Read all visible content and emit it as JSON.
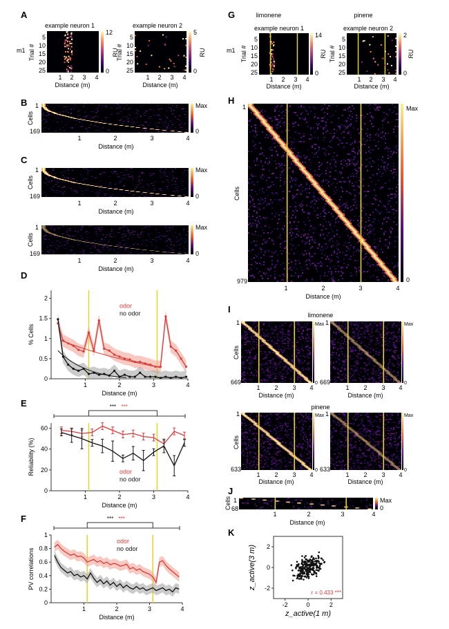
{
  "panels": {
    "A": "A",
    "B": "B",
    "C": "C",
    "D": "D",
    "E": "E",
    "F": "F",
    "G": "G",
    "H": "H",
    "I": "I",
    "J": "J",
    "K": "K"
  },
  "colors": {
    "odor": "#d93a3a",
    "noodor": "#111111",
    "marker": "#e8d22a",
    "odorBand": "#f1a596",
    "noodorBand": "#a9a9a9"
  },
  "common": {
    "distance_label": "Distance (m)",
    "cells_label": "Cells",
    "trial_label": "Trial #",
    "ru_label": "RU",
    "max_label": "Max",
    "zero": "0",
    "one": "1",
    "m1": "m1",
    "odor": "odor",
    "no_odor": "no odor",
    "ticks_x": [
      "1",
      "2",
      "3",
      "4"
    ]
  },
  "panelA": {
    "n1_title": "example neuron 1",
    "n2_title": "example neuron 2",
    "trial_ticks": [
      "5",
      "10",
      "15",
      "20",
      "25"
    ],
    "n1_cbar": [
      "12",
      "0"
    ],
    "n2_cbar": [
      "5",
      "0"
    ]
  },
  "panelB": {
    "n_cells": "169"
  },
  "panelC": {
    "n_cells_top": "169",
    "n_cells_bottom": "169"
  },
  "panelG": {
    "odor1": "limonene",
    "odor2": "pinene",
    "n1_title": "example neuron 1",
    "n2_title": "example neuron 2",
    "n1_cbar": [
      "14",
      "0"
    ],
    "n2_cbar": [
      "2",
      "0"
    ]
  },
  "panelH": {
    "n_cells": "979"
  },
  "panelI": {
    "odor1": "limonene",
    "odor2": "pinene",
    "n_limonene": "669",
    "n_pinene": "633"
  },
  "panelJ": {
    "n_cells": "68"
  },
  "panelK": {
    "r_label": "r = 0.433 ***",
    "y_ticks": [
      "2",
      "0",
      "-2"
    ],
    "x_ticks": [
      "-2",
      "0",
      "2"
    ]
  },
  "chart_data": [
    {
      "type": "line",
      "panel": "D",
      "ylabel": "% Cells",
      "xlabel": "Distance (m)",
      "ylim": [
        0,
        2.2
      ],
      "xlim": [
        0,
        4
      ],
      "y_ticks": [
        "0",
        "0.5",
        "1",
        "1.5",
        "2"
      ],
      "series": [
        {
          "name": "odor",
          "x": [
            0.2,
            0.35,
            0.5,
            0.65,
            0.8,
            0.95,
            1.1,
            1.25,
            1.4,
            1.55,
            1.7,
            1.85,
            2.0,
            2.15,
            2.3,
            2.45,
            2.6,
            2.75,
            2.9,
            3.05,
            3.2,
            3.35,
            3.5,
            3.65,
            3.8,
            3.95
          ],
          "values": [
            1.38,
            0.95,
            0.88,
            0.82,
            0.72,
            0.68,
            1.15,
            0.7,
            1.45,
            0.75,
            0.7,
            0.6,
            0.55,
            0.5,
            0.48,
            0.42,
            0.42,
            0.38,
            0.35,
            0.3,
            0.3,
            1.55,
            0.8,
            0.7,
            0.5,
            0.3
          ]
        },
        {
          "name": "no odor",
          "x": [
            0.2,
            0.35,
            0.5,
            0.65,
            0.8,
            0.95,
            1.1,
            1.25,
            1.4,
            1.55,
            1.7,
            1.85,
            2.0,
            2.15,
            2.3,
            2.45,
            2.6,
            2.75,
            2.9,
            3.05,
            3.2,
            3.35,
            3.5,
            3.65,
            3.8,
            3.95
          ],
          "values": [
            1.48,
            0.55,
            0.35,
            0.25,
            0.2,
            0.25,
            0.12,
            0.15,
            0.1,
            0.12,
            0.08,
            0.2,
            0.05,
            0.1,
            0.05,
            0.05,
            0.15,
            0.05,
            0.05,
            0.05,
            0.02,
            0.05,
            0.02,
            0.05,
            0.02,
            0.05
          ]
        }
      ],
      "vlines": [
        1.1,
        3.1
      ]
    },
    {
      "type": "line",
      "panel": "E",
      "ylabel": "Reliability (%)",
      "xlabel": "Distance (m)",
      "ylim": [
        0,
        65
      ],
      "xlim": [
        0,
        4
      ],
      "y_ticks": [
        "0",
        "20",
        "40",
        "60"
      ],
      "significance": [
        "***",
        "***"
      ],
      "series": [
        {
          "name": "odor",
          "x": [
            0.3,
            0.6,
            0.9,
            1.2,
            1.5,
            1.8,
            2.1,
            2.4,
            2.7,
            3.0,
            3.3,
            3.6,
            3.9
          ],
          "values": [
            58,
            57,
            55,
            56,
            62,
            58,
            54,
            55,
            52,
            51,
            45,
            57,
            53
          ]
        },
        {
          "name": "no odor",
          "x": [
            0.3,
            0.6,
            0.9,
            1.2,
            1.5,
            1.8,
            2.1,
            2.4,
            2.7,
            3.0,
            3.3,
            3.6,
            3.9
          ],
          "values": [
            56,
            53,
            50,
            46,
            43,
            38,
            31,
            36,
            29,
            37,
            43,
            24,
            46
          ]
        }
      ],
      "vlines": [
        1.1,
        3.1
      ]
    },
    {
      "type": "line",
      "panel": "F",
      "ylabel": "PV correlations",
      "xlabel": "Distance (m)",
      "ylim": [
        0,
        1
      ],
      "xlim": [
        0,
        4
      ],
      "y_ticks": [
        "0",
        "0.2",
        "0.4",
        "0.6",
        "0.8",
        "1"
      ],
      "significance": [
        "***",
        "***"
      ],
      "series": [
        {
          "name": "odor",
          "x": [
            0.1,
            0.2,
            0.3,
            0.4,
            0.5,
            0.6,
            0.7,
            0.8,
            0.9,
            1.0,
            1.1,
            1.2,
            1.3,
            1.4,
            1.5,
            1.6,
            1.7,
            1.8,
            1.9,
            2.0,
            2.1,
            2.2,
            2.3,
            2.4,
            2.5,
            2.6,
            2.7,
            2.8,
            2.9,
            3.0,
            3.1,
            3.2,
            3.3,
            3.4,
            3.5,
            3.6,
            3.7,
            3.8,
            3.9
          ],
          "values": [
            0.82,
            0.86,
            0.8,
            0.76,
            0.73,
            0.7,
            0.72,
            0.68,
            0.69,
            0.66,
            0.6,
            0.62,
            0.64,
            0.6,
            0.62,
            0.58,
            0.6,
            0.56,
            0.58,
            0.57,
            0.54,
            0.55,
            0.57,
            0.5,
            0.52,
            0.48,
            0.5,
            0.46,
            0.44,
            0.42,
            0.38,
            0.3,
            0.6,
            0.62,
            0.55,
            0.5,
            0.46,
            0.42,
            0.38
          ]
        },
        {
          "name": "no odor",
          "x": [
            0.1,
            0.2,
            0.3,
            0.4,
            0.5,
            0.6,
            0.7,
            0.8,
            0.9,
            1.0,
            1.1,
            1.2,
            1.3,
            1.4,
            1.5,
            1.6,
            1.7,
            1.8,
            1.9,
            2.0,
            2.1,
            2.2,
            2.3,
            2.4,
            2.5,
            2.6,
            2.7,
            2.8,
            2.9,
            3.0,
            3.1,
            3.2,
            3.3,
            3.4,
            3.5,
            3.6,
            3.7,
            3.8,
            3.9
          ],
          "values": [
            0.7,
            0.6,
            0.52,
            0.48,
            0.44,
            0.46,
            0.4,
            0.42,
            0.38,
            0.4,
            0.35,
            0.44,
            0.36,
            0.3,
            0.34,
            0.28,
            0.32,
            0.26,
            0.3,
            0.24,
            0.28,
            0.22,
            0.26,
            0.22,
            0.2,
            0.24,
            0.2,
            0.22,
            0.18,
            0.2,
            0.22,
            0.18,
            0.2,
            0.22,
            0.18,
            0.2,
            0.16,
            0.22,
            0.2
          ]
        }
      ],
      "vlines": [
        1.1,
        3.1
      ]
    },
    {
      "type": "scatter",
      "panel": "K",
      "xlabel": "z_active(1 m)",
      "ylabel": "z_active(3 m)",
      "xlim": [
        -3,
        3
      ],
      "ylim": [
        -3,
        3
      ],
      "r": 0.433
    }
  ]
}
